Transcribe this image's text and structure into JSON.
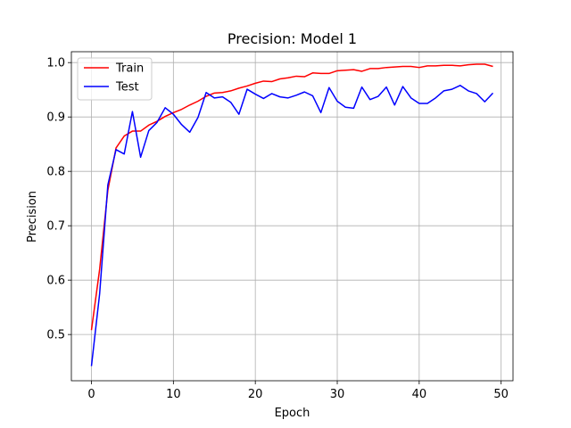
{
  "chart_data": {
    "type": "line",
    "title": "Precision: Model 1",
    "xlabel": "Epoch",
    "ylabel": "Precision",
    "xlim": [
      -2.45,
      51.45
    ],
    "ylim": [
      0.415,
      1.02
    ],
    "xticks": [
      0,
      10,
      20,
      30,
      40,
      50
    ],
    "yticks": [
      0.5,
      0.6,
      0.7,
      0.8,
      0.9,
      1.0
    ],
    "xtick_labels": [
      "0",
      "10",
      "20",
      "30",
      "40",
      "50"
    ],
    "ytick_labels": [
      "0.5",
      "0.6",
      "0.7",
      "0.8",
      "0.9",
      "1.0"
    ],
    "grid": true,
    "legend": "top-left",
    "x": [
      0,
      1,
      2,
      3,
      4,
      5,
      6,
      7,
      8,
      9,
      10,
      11,
      12,
      13,
      14,
      15,
      16,
      17,
      18,
      19,
      20,
      21,
      22,
      23,
      24,
      25,
      26,
      27,
      28,
      29,
      30,
      31,
      32,
      33,
      34,
      35,
      36,
      37,
      38,
      39,
      40,
      41,
      42,
      43,
      44,
      45,
      46,
      47,
      48,
      49
    ],
    "series": [
      {
        "name": "Train",
        "color": "#ff0000",
        "values": [
          0.508,
          0.62,
          0.765,
          0.843,
          0.865,
          0.874,
          0.874,
          0.885,
          0.892,
          0.901,
          0.908,
          0.914,
          0.922,
          0.929,
          0.938,
          0.944,
          0.945,
          0.948,
          0.953,
          0.957,
          0.962,
          0.966,
          0.965,
          0.97,
          0.972,
          0.975,
          0.974,
          0.981,
          0.98,
          0.98,
          0.985,
          0.986,
          0.987,
          0.984,
          0.989,
          0.989,
          0.991,
          0.992,
          0.993,
          0.993,
          0.991,
          0.994,
          0.994,
          0.995,
          0.995,
          0.994,
          0.996,
          0.997,
          0.997,
          0.993
        ]
      },
      {
        "name": "Test",
        "color": "#0000ff",
        "values": [
          0.442,
          0.575,
          0.775,
          0.84,
          0.832,
          0.91,
          0.826,
          0.875,
          0.89,
          0.917,
          0.905,
          0.886,
          0.872,
          0.899,
          0.945,
          0.935,
          0.937,
          0.927,
          0.905,
          0.951,
          0.942,
          0.934,
          0.943,
          0.937,
          0.935,
          0.94,
          0.946,
          0.939,
          0.908,
          0.954,
          0.929,
          0.918,
          0.916,
          0.955,
          0.932,
          0.938,
          0.955,
          0.922,
          0.956,
          0.935,
          0.925,
          0.925,
          0.935,
          0.948,
          0.951,
          0.958,
          0.948,
          0.943,
          0.928,
          0.944
        ]
      }
    ]
  }
}
